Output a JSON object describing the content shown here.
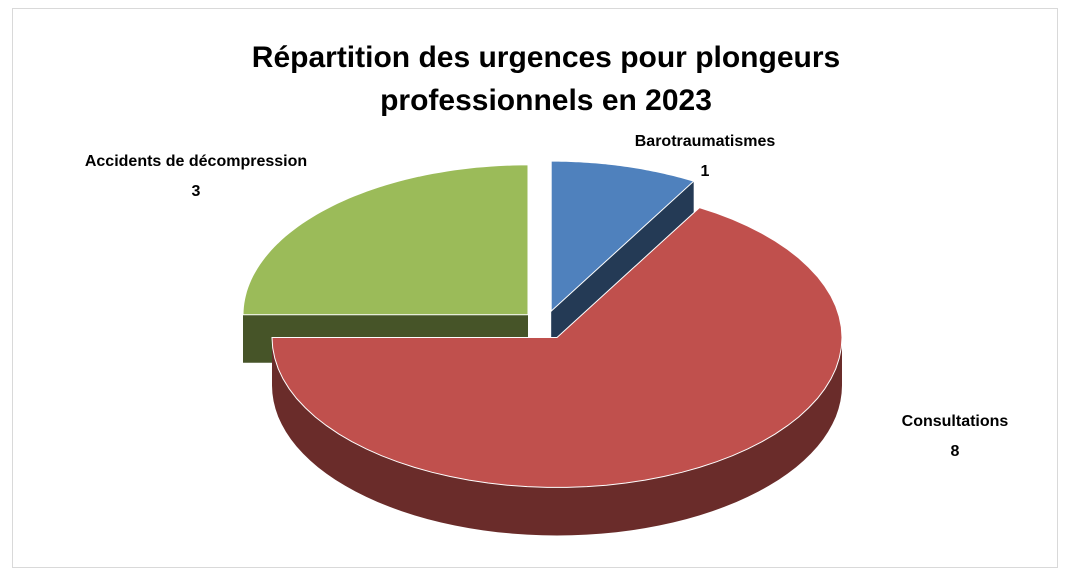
{
  "chart_data": {
    "type": "pie3d",
    "title": "Répartition des urgences pour plongeurs professionnels en 2023",
    "categories": [
      "Barotraumatismes",
      "Consultations",
      "Accidents de décompression"
    ],
    "values": [
      1,
      8,
      3
    ],
    "colors": [
      "#4f81bd",
      "#c0504d",
      "#9bbb59"
    ]
  }
}
